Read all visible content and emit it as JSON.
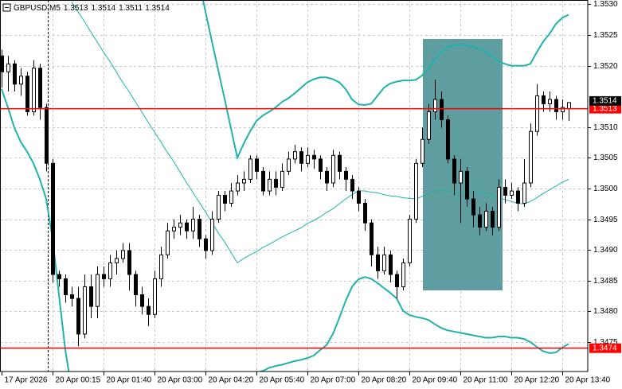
{
  "chart_data": {
    "type": "candlestick",
    "title": "GBPUSD,M5",
    "categories": [
      "17 Apr 2026",
      null,
      null,
      null,
      null,
      null,
      null,
      null,
      "20 Apr 00:15",
      null,
      null,
      null,
      null,
      null,
      null,
      null,
      "20 Apr 01:40",
      null,
      null,
      null,
      null,
      null,
      null,
      null,
      "20 Apr 03:00",
      null,
      null,
      null,
      null,
      null,
      null,
      null,
      "20 Apr 04:20",
      null,
      null,
      null,
      null,
      null,
      null,
      null,
      "20 Apr 05:40",
      null,
      null,
      null,
      null,
      null,
      null,
      null,
      "20 Apr 07:00",
      null,
      null,
      null,
      null,
      null,
      null,
      null,
      "20 Apr 08:20",
      null,
      null,
      null,
      null,
      null,
      null,
      null,
      "20 Apr 09:40",
      null,
      null,
      null,
      null,
      null,
      null,
      null,
      "20 Apr 11:00",
      null,
      null,
      null,
      null,
      null,
      null,
      null,
      "20 Apr 12:20",
      null,
      null,
      null,
      null,
      null,
      null,
      null,
      "20 Apr 13:40",
      null
    ],
    "open": [
      1.35216,
      1.3519,
      1.35203,
      1.3517,
      1.35183,
      1.35125,
      1.35196,
      1.35132,
      1.35041,
      1.3486,
      1.34853,
      1.34827,
      1.34821,
      1.34763,
      1.3484,
      1.34808,
      1.3486,
      1.34853,
      1.34879,
      1.34886,
      1.34899,
      1.3486,
      1.34827,
      1.34808,
      1.34795,
      1.34853,
      1.34892,
      1.34931,
      1.34937,
      1.34944,
      1.34931,
      1.3495,
      1.34918,
      1.34899,
      1.3495,
      1.34989,
      1.34976,
      1.34996,
      1.35009,
      1.35015,
      1.35048,
      1.35028,
      1.34996,
      1.35015,
      1.35002,
      1.35028,
      1.35048,
      1.3506,
      1.35041,
      1.35054,
      1.35048,
      1.35028,
      1.35009,
      1.35054,
      1.35028,
      1.35015,
      1.34996,
      1.34976,
      1.34944,
      1.34892,
      1.34866,
      1.34892,
      1.3486,
      1.3484,
      1.34879,
      1.3495,
      1.35041,
      1.3508,
      1.35125,
      1.35145,
      1.35112,
      1.35048,
      1.35009,
      1.35028,
      1.34983,
      1.34957,
      1.34937,
      1.34963,
      1.34937,
      1.35002,
      1.34989,
      1.34996,
      1.34976,
      1.35009,
      1.35093,
      1.35151,
      1.35138,
      1.35145,
      1.35125,
      1.3513
    ],
    "high": [
      1.35226,
      1.35216,
      1.35209,
      1.35196,
      1.3519,
      1.35209,
      1.35203,
      1.35138,
      1.35048,
      1.34866,
      1.3486,
      1.3484,
      1.3484,
      1.3486,
      1.3486,
      1.34873,
      1.34873,
      1.34892,
      1.34899,
      1.34911,
      1.34911,
      1.34866,
      1.3484,
      1.34821,
      1.34866,
      1.34905,
      1.34944,
      1.3495,
      1.34957,
      1.3495,
      1.3497,
      1.34957,
      1.34924,
      1.34963,
      1.34996,
      1.34996,
      1.35009,
      1.35022,
      1.35028,
      1.35054,
      1.35054,
      1.35035,
      1.35028,
      1.35028,
      1.35041,
      1.3506,
      1.35071,
      1.35067,
      1.35067,
      1.35063,
      1.35054,
      1.35035,
      1.35063,
      1.3506,
      1.35035,
      1.35022,
      1.35002,
      1.34983,
      1.3495,
      1.34905,
      1.34905,
      1.34899,
      1.34866,
      1.34886,
      1.34957,
      1.35048,
      1.35099,
      1.35138,
      1.35177,
      1.35158,
      1.35119,
      1.35054,
      1.35048,
      1.35035,
      1.34996,
      1.3497,
      1.34976,
      1.3497,
      1.35015,
      1.35015,
      1.35009,
      1.35002,
      1.35048,
      1.35106,
      1.3517,
      1.35158,
      1.35158,
      1.35151,
      1.35145,
      1.3514
    ],
    "low": [
      1.35164,
      1.35158,
      1.35158,
      1.35151,
      1.35119,
      1.35119,
      1.35112,
      1.35028,
      1.34847,
      1.3484,
      1.34814,
      1.34808,
      1.34743,
      1.34756,
      1.34789,
      1.34789,
      1.3484,
      1.3484,
      1.3486,
      1.34879,
      1.34834,
      1.34808,
      1.34795,
      1.34776,
      1.34789,
      1.3484,
      1.34886,
      1.34918,
      1.34924,
      1.34918,
      1.34918,
      1.34905,
      1.34886,
      1.34892,
      1.34944,
      1.34963,
      1.3497,
      1.34989,
      1.34996,
      1.35009,
      1.35015,
      1.34989,
      1.34989,
      1.34989,
      1.34996,
      1.35022,
      1.35041,
      1.35028,
      1.35035,
      1.35032,
      1.35015,
      1.34996,
      1.35002,
      1.35015,
      1.34996,
      1.34983,
      1.34963,
      1.34931,
      1.34873,
      1.34853,
      1.3486,
      1.34847,
      1.34821,
      1.34834,
      1.34873,
      1.34944,
      1.35035,
      1.35073,
      1.35112,
      1.35099,
      1.35041,
      1.34989,
      1.34944,
      1.3497,
      1.34937,
      1.34924,
      1.34931,
      1.34924,
      1.34931,
      1.34976,
      1.34983,
      1.34963,
      1.3497,
      1.35002,
      1.35086,
      1.35125,
      1.35125,
      1.35112,
      1.35112,
      1.3511
    ],
    "close": [
      1.3519,
      1.35203,
      1.3517,
      1.35183,
      1.35125,
      1.35196,
      1.35132,
      1.35041,
      1.3486,
      1.34853,
      1.34827,
      1.34821,
      1.34763,
      1.3484,
      1.34808,
      1.3486,
      1.34853,
      1.34879,
      1.34886,
      1.34899,
      1.3486,
      1.34827,
      1.34808,
      1.34795,
      1.34853,
      1.34892,
      1.34931,
      1.34937,
      1.34944,
      1.34931,
      1.3495,
      1.34918,
      1.34899,
      1.3495,
      1.34989,
      1.34976,
      1.34996,
      1.35009,
      1.35015,
      1.35048,
      1.35028,
      1.34996,
      1.35015,
      1.35002,
      1.35028,
      1.35048,
      1.3506,
      1.35041,
      1.35054,
      1.35048,
      1.35028,
      1.35009,
      1.35054,
      1.35028,
      1.35015,
      1.34996,
      1.34976,
      1.34944,
      1.34892,
      1.34866,
      1.34892,
      1.3486,
      1.3484,
      1.34879,
      1.3495,
      1.35041,
      1.3508,
      1.35125,
      1.35145,
      1.35112,
      1.35048,
      1.35009,
      1.35028,
      1.34983,
      1.34957,
      1.34937,
      1.34963,
      1.34937,
      1.35002,
      1.34989,
      1.34996,
      1.34976,
      1.35009,
      1.35093,
      1.35151,
      1.35138,
      1.35145,
      1.35125,
      1.35132,
      1.3514
    ],
    "bands": {
      "color": "#20b2aa",
      "upper": [
        null,
        null,
        null,
        null,
        null,
        null,
        null,
        null,
        null,
        null,
        null,
        null,
        null,
        null,
        null,
        null,
        null,
        null,
        null,
        null,
        null,
        null,
        null,
        null,
        null,
        null,
        null,
        null,
        null,
        null,
        null,
        1.35336,
        1.35288,
        1.3524,
        1.35193,
        1.35146,
        1.35098,
        1.3505,
        1.35073,
        1.35093,
        1.3511,
        1.35119,
        1.35125,
        1.35132,
        1.35141,
        1.35147,
        1.35155,
        1.35164,
        1.35173,
        1.35178,
        1.35181,
        1.35181,
        1.35178,
        1.35173,
        1.35162,
        1.35145,
        1.35137,
        1.35136,
        1.35138,
        1.35151,
        1.35164,
        1.35171,
        1.35174,
        1.35176,
        1.35176,
        1.35177,
        1.35184,
        1.35196,
        1.35209,
        1.35222,
        1.35231,
        1.35233,
        1.35234,
        1.35233,
        1.35231,
        1.35228,
        1.35222,
        1.35216,
        1.35207,
        1.35203,
        1.352,
        1.352,
        1.352,
        1.35203,
        1.35222,
        1.35239,
        1.35252,
        1.35268,
        1.35278,
        1.35283
      ],
      "middle": [
        null,
        null,
        null,
        null,
        null,
        null,
        null,
        null,
        null,
        null,
        null,
        1.35304,
        1.35288,
        1.35272,
        1.35255,
        1.35239,
        1.35222,
        1.35207,
        1.3519,
        1.35173,
        1.35158,
        1.35141,
        1.35125,
        1.35108,
        1.35092,
        1.35076,
        1.35059,
        1.35044,
        1.35027,
        1.3501,
        1.34994,
        1.34978,
        1.34962,
        1.34945,
        1.34928,
        1.34913,
        1.34896,
        1.34879,
        1.34886,
        1.34892,
        1.34897,
        1.34904,
        1.34909,
        1.34915,
        1.34921,
        1.34926,
        1.34931,
        1.34936,
        1.34943,
        1.34948,
        1.34954,
        1.34961,
        1.34967,
        1.34975,
        1.34983,
        1.3499,
        1.34996,
        1.34996,
        1.34994,
        1.34993,
        1.3499,
        1.34988,
        1.34987,
        1.34985,
        1.34984,
        1.34983,
        1.34987,
        1.34992,
        1.34996,
        1.34997,
        1.34996,
        1.34994,
        1.34994,
        1.34994,
        1.34996,
        1.34994,
        1.34993,
        1.34989,
        1.34985,
        1.34982,
        1.34979,
        1.34976,
        1.34975,
        1.34979,
        1.34985,
        1.34992,
        1.34998,
        1.35004,
        1.3501,
        1.35015
      ],
      "lower": [
        1.35162,
        1.35132,
        1.35099,
        1.35076,
        1.3506,
        1.35041,
        1.35015,
        1.34983,
        1.34918,
        1.34827,
        1.34737,
        1.34672,
        null,
        null,
        null,
        null,
        null,
        null,
        null,
        null,
        null,
        null,
        null,
        null,
        null,
        null,
        null,
        null,
        null,
        null,
        null,
        null,
        null,
        null,
        null,
        null,
        null,
        1.347,
        1.34698,
        1.34698,
        1.347,
        1.34703,
        1.34708,
        1.34711,
        1.34713,
        1.34716,
        1.34719,
        1.34721,
        1.34724,
        1.34728,
        1.34737,
        1.34745,
        1.34763,
        1.34789,
        1.34817,
        1.3484,
        1.34852,
        1.34856,
        1.34853,
        1.34846,
        1.34838,
        1.3483,
        1.34821,
        1.34801,
        1.34794,
        1.34791,
        1.34789,
        1.34786,
        1.34779,
        1.34773,
        1.34769,
        1.34767,
        1.34765,
        1.34763,
        1.34761,
        1.34759,
        1.34757,
        1.34757,
        1.34759,
        1.34759,
        1.34757,
        1.34757,
        1.34755,
        1.3475,
        1.34742,
        1.34735,
        1.34732,
        1.34733,
        1.34741,
        1.34747
      ]
    },
    "levels": [
      1.3513,
      1.3474
    ],
    "colors": {
      "bull": "#ffffff",
      "bear": "#000000",
      "wick": "#000000",
      "level": "#ff0000",
      "price_box": "#000000"
    },
    "ylim": [
      1.34702,
      1.35307
    ],
    "yticks": [
      {
        "value": 1.353,
        "label": "1.3530"
      },
      1.3525,
      {
        "value": 1.352,
        "label": "1.3520"
      },
      {
        "value": 1.351,
        "label": "1.3510"
      },
      1.3505,
      {
        "value": 1.35,
        "label": "1.3500"
      },
      1.3495,
      {
        "value": 1.349,
        "label": "1.3490"
      },
      1.3485,
      {
        "value": 1.348,
        "label": "1.3480"
      },
      1.3475
    ],
    "grid": true
  }
}
